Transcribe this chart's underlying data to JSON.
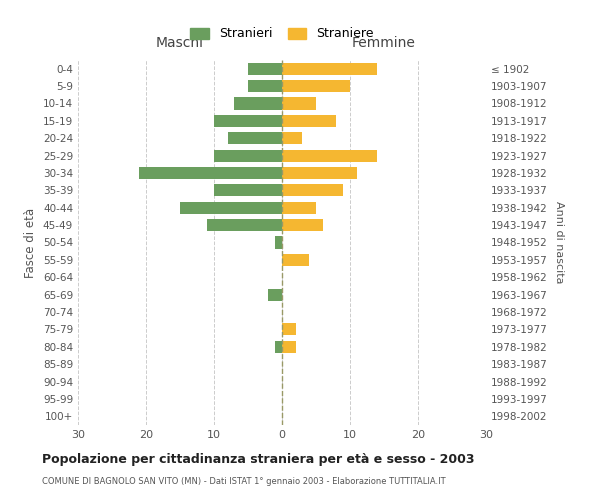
{
  "age_groups": [
    "0-4",
    "5-9",
    "10-14",
    "15-19",
    "20-24",
    "25-29",
    "30-34",
    "35-39",
    "40-44",
    "45-49",
    "50-54",
    "55-59",
    "60-64",
    "65-69",
    "70-74",
    "75-79",
    "80-84",
    "85-89",
    "90-94",
    "95-99",
    "100+"
  ],
  "birth_years": [
    "1998-2002",
    "1993-1997",
    "1988-1992",
    "1983-1987",
    "1978-1982",
    "1973-1977",
    "1968-1972",
    "1963-1967",
    "1958-1962",
    "1953-1957",
    "1948-1952",
    "1943-1947",
    "1938-1942",
    "1933-1937",
    "1928-1932",
    "1923-1927",
    "1918-1922",
    "1913-1917",
    "1908-1912",
    "1903-1907",
    "≤ 1902"
  ],
  "maschi": [
    5,
    5,
    7,
    10,
    8,
    10,
    21,
    10,
    15,
    11,
    1,
    0,
    0,
    2,
    0,
    0,
    1,
    0,
    0,
    0,
    0
  ],
  "femmine": [
    14,
    10,
    5,
    8,
    3,
    14,
    11,
    9,
    5,
    6,
    0,
    4,
    0,
    0,
    0,
    2,
    2,
    0,
    0,
    0,
    0
  ],
  "maschi_color": "#6a9e5e",
  "femmine_color": "#f5b731",
  "center_line_color": "#999966",
  "grid_color": "#cccccc",
  "background_color": "#ffffff",
  "title": "Popolazione per cittadinanza straniera per età e sesso - 2003",
  "subtitle": "COMUNE DI BAGNOLO SAN VITO (MN) - Dati ISTAT 1° gennaio 2003 - Elaborazione TUTTITALIA.IT",
  "ylabel_left": "Fasce di età",
  "ylabel_right": "Anni di nascita",
  "xlabel_maschi": "Maschi",
  "xlabel_femmine": "Femmine",
  "legend_maschi": "Stranieri",
  "legend_femmine": "Straniere",
  "xlim": 30,
  "bar_height": 0.7
}
